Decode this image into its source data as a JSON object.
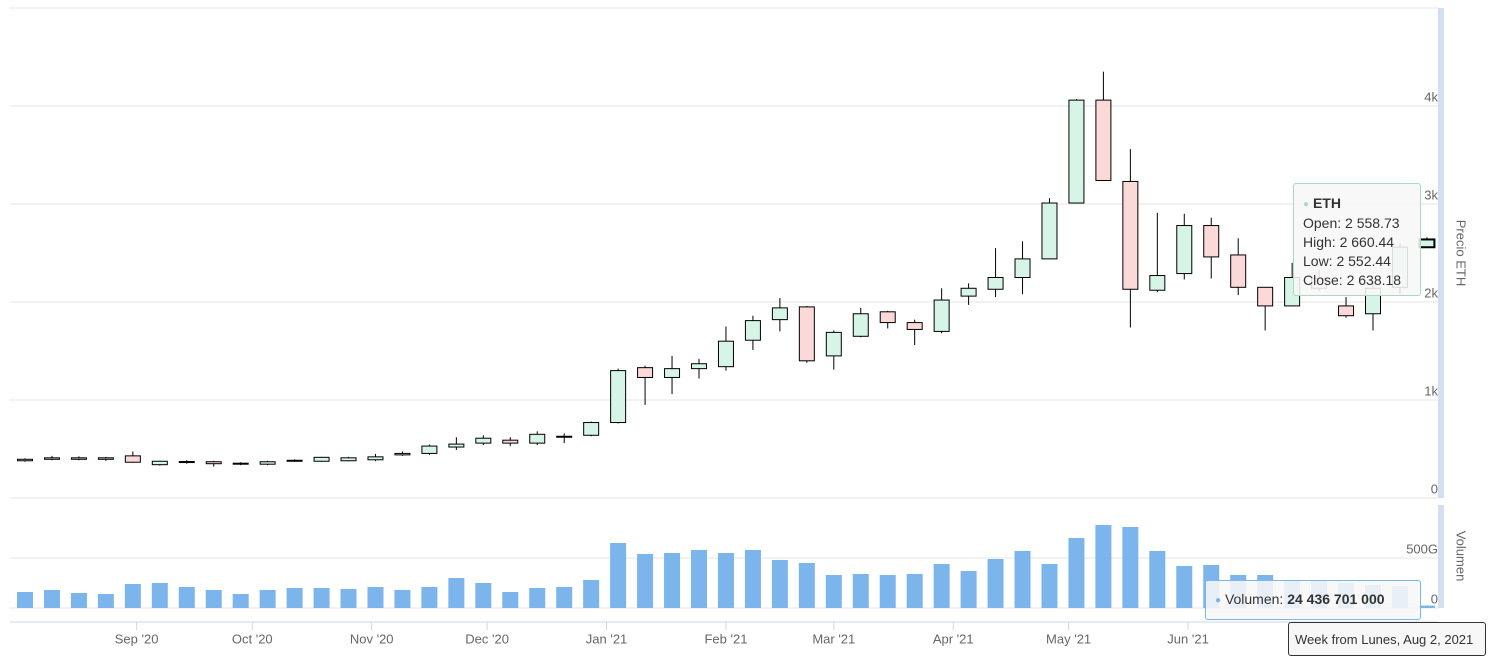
{
  "chart_data": [
    {
      "type": "candlestick",
      "y_label": "Precio ETH",
      "series": [
        {
          "name": "ETH",
          "up_color": "#d6f5e7",
          "down_color": "#fbd9d8",
          "open": [
            380,
            395,
            395,
            395,
            430,
            340,
            365,
            370,
            345,
            345,
            380,
            375,
            380,
            390,
            440,
            455,
            520,
            560,
            590,
            560,
            620,
            640,
            770,
            1330,
            1230,
            1320,
            1340,
            1610,
            1820,
            1950,
            1450,
            1650,
            1900,
            1790,
            1700,
            2060,
            2130,
            2250,
            2440,
            3010,
            4060,
            3230,
            2120,
            2290,
            2780,
            2480,
            2150,
            1960,
            2240,
            1960,
            1880,
            2150,
            2558.73
          ],
          "high": [
            405,
            430,
            425,
            420,
            475,
            380,
            385,
            380,
            365,
            380,
            395,
            420,
            420,
            450,
            475,
            545,
            620,
            640,
            620,
            680,
            660,
            780,
            1320,
            1350,
            1450,
            1420,
            1750,
            1860,
            2040,
            1960,
            1710,
            1940,
            1910,
            1820,
            2140,
            2190,
            2550,
            2620,
            3060,
            4070,
            4350,
            3560,
            2910,
            2900,
            2860,
            2650,
            2150,
            2400,
            2330,
            2050,
            2200,
            2600,
            2660.44
          ],
          "low": [
            370,
            385,
            385,
            380,
            360,
            330,
            350,
            320,
            335,
            335,
            370,
            370,
            375,
            375,
            430,
            440,
            490,
            540,
            530,
            540,
            560,
            630,
            760,
            950,
            1060,
            1220,
            1300,
            1510,
            1700,
            1380,
            1310,
            1640,
            1730,
            1560,
            1680,
            1970,
            2050,
            2080,
            2440,
            3010,
            3240,
            1740,
            2100,
            2230,
            2240,
            2070,
            1710,
            1960,
            2110,
            1840,
            1710,
            2080,
            2552.44
          ],
          "close": [
            395,
            410,
            410,
            410,
            365,
            375,
            372,
            350,
            355,
            370,
            385,
            415,
            410,
            420,
            455,
            530,
            550,
            610,
            560,
            650,
            630,
            770,
            1300,
            1230,
            1320,
            1370,
            1600,
            1810,
            1940,
            1400,
            1690,
            1880,
            1790,
            1720,
            2020,
            2140,
            2250,
            2440,
            3010,
            4060,
            3240,
            2130,
            2270,
            2780,
            2460,
            2150,
            1960,
            2250,
            2140,
            1860,
            2140,
            2560,
            2638.18
          ]
        }
      ],
      "ylim": [
        0,
        5000
      ],
      "yticks": [
        0,
        {
          "value": 1000,
          "label": "1k"
        },
        {
          "value": 2000,
          "label": "2k"
        },
        {
          "value": 3000,
          "label": "3k"
        },
        {
          "value": 4000,
          "label": "4k"
        }
      ],
      "grid": true,
      "tooltip": {
        "title": "ETH",
        "rows": [
          "Open: 2 558.73",
          "High: 2 660.44",
          "Low: 2 552.44",
          "Close: 2 638.18"
        ]
      }
    },
    {
      "type": "bar",
      "y_label": "Volumen",
      "series": [
        {
          "name": "Volumen",
          "color": "#7cb5ec",
          "values": [
            160000000000,
            180000000000,
            150000000000,
            140000000000,
            240000000000,
            250000000000,
            210000000000,
            180000000000,
            140000000000,
            180000000000,
            200000000000,
            200000000000,
            190000000000,
            210000000000,
            180000000000,
            210000000000,
            300000000000,
            250000000000,
            160000000000,
            200000000000,
            210000000000,
            280000000000,
            650000000000,
            540000000000,
            550000000000,
            580000000000,
            550000000000,
            580000000000,
            480000000000,
            450000000000,
            330000000000,
            340000000000,
            330000000000,
            340000000000,
            440000000000,
            370000000000,
            490000000000,
            570000000000,
            440000000000,
            700000000000,
            830000000000,
            810000000000,
            570000000000,
            420000000000,
            430000000000,
            330000000000,
            330000000000,
            280000000000,
            270000000000,
            250000000000,
            230000000000,
            220000000000,
            24436701000
          ]
        }
      ],
      "ylim": [
        0,
        1000000000000
      ],
      "yticks": [
        0,
        {
          "value": 500000000000,
          "label": "500G"
        }
      ],
      "grid": true,
      "xticks": [
        {
          "value": 4.14,
          "label": "Sep '20"
        },
        {
          "value": 8.43,
          "label": "Oct '20"
        },
        {
          "value": 12.86,
          "label": "Nov '20"
        },
        {
          "value": 17.14,
          "label": "Dec '20"
        },
        {
          "value": 21.57,
          "label": "Jan '21"
        },
        {
          "value": 26,
          "label": "Feb '21"
        },
        {
          "value": 30,
          "label": "Mar '21"
        },
        {
          "value": 34.43,
          "label": "Apr '21"
        },
        {
          "value": 38.71,
          "label": "May '21"
        },
        {
          "value": 43.14,
          "label": "Jun '21"
        }
      ],
      "tooltip": {
        "label": "Volumen:",
        "value": "24 436 701 000",
        "x_label": "Week from Lunes, Aug 2, 2021"
      }
    }
  ]
}
